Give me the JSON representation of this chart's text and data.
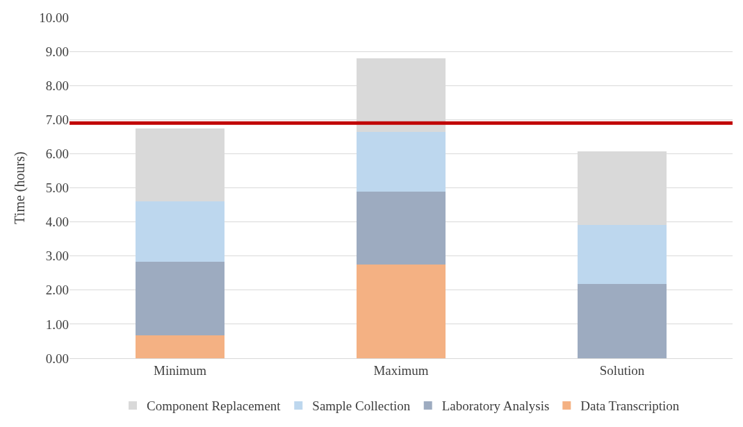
{
  "chart_data": {
    "type": "bar",
    "stacked": true,
    "ylabel": "Time (hours)",
    "categories": [
      "Minimum",
      "Maximum",
      "Solution"
    ],
    "series": [
      {
        "name": "Data Transcription",
        "color": "#f4b183",
        "values": [
          0.68,
          2.74,
          0
        ]
      },
      {
        "name": "Laboratory Analysis",
        "color": "#9dabc0",
        "values": [
          2.15,
          2.15,
          2.17
        ]
      },
      {
        "name": "Sample Collection",
        "color": "#bdd7ee",
        "values": [
          1.77,
          1.75,
          1.74
        ]
      },
      {
        "name": "Component Replacement",
        "color": "#d9d9d9",
        "values": [
          2.14,
          2.15,
          2.15
        ]
      }
    ],
    "ylim": [
      0,
      10
    ],
    "yticks": [
      {
        "value": 0,
        "label": "0.00"
      },
      {
        "value": 1,
        "label": "1.00"
      },
      {
        "value": 2,
        "label": "2.00"
      },
      {
        "value": 3,
        "label": "3.00"
      },
      {
        "value": 4,
        "label": "4.00"
      },
      {
        "value": 5,
        "label": "5.00"
      },
      {
        "value": 6,
        "label": "6.00"
      },
      {
        "value": 7,
        "label": "7.00"
      },
      {
        "value": 8,
        "label": "8.00"
      },
      {
        "value": 9,
        "label": "9.00"
      },
      {
        "value": 10,
        "label": "10.00"
      }
    ],
    "ref_lines": [
      {
        "axis": "y",
        "value": 6.9,
        "color": "#c00000",
        "line_style": "solid"
      }
    ],
    "grid": "y",
    "legend": "bottom"
  }
}
